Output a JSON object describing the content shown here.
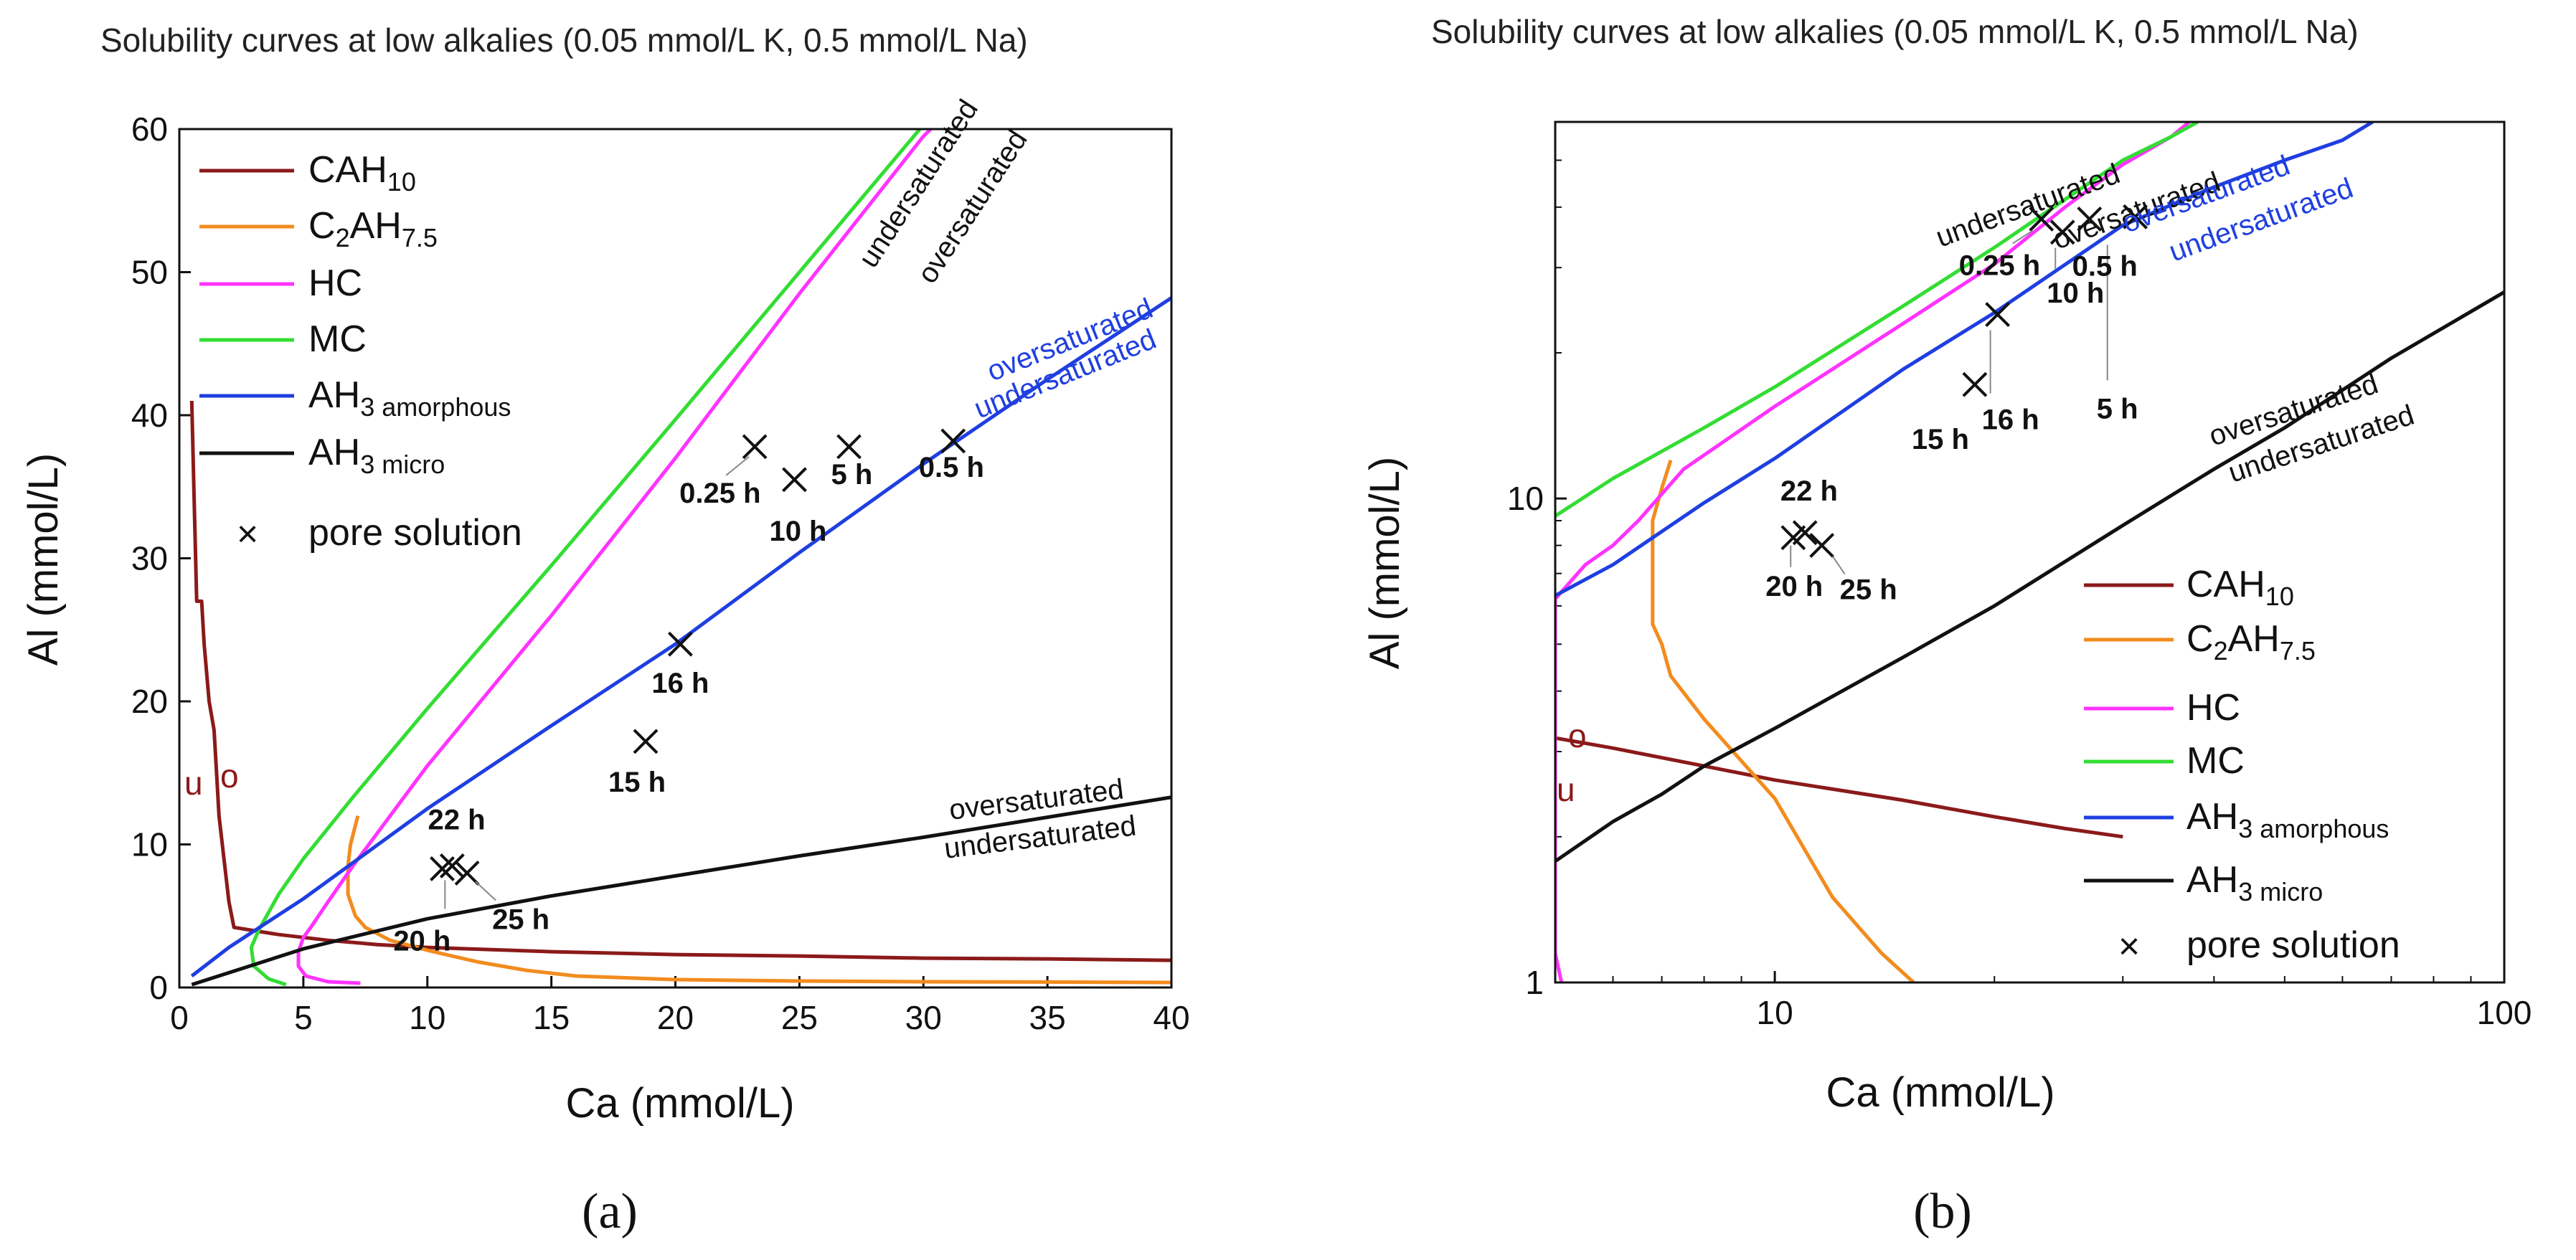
{
  "captions": [
    "(a)",
    "(b)"
  ],
  "chart_data": [
    {
      "type": "line",
      "panel": "a",
      "title": "Solubility curves at low alkalies (0.05 mmol/L K, 0.5 mmol/L Na)",
      "xlabel": "Ca (mmol/L)",
      "ylabel": "Al (mmol/L)",
      "xlim": [
        0,
        40
      ],
      "ylim": [
        0,
        60
      ],
      "xscale": "linear",
      "yscale": "linear",
      "xticks": [
        0,
        5,
        10,
        15,
        20,
        25,
        30,
        35,
        40
      ],
      "yticks": [
        0,
        10,
        20,
        30,
        40,
        50,
        60
      ],
      "series": [
        {
          "name": "CAH10",
          "color": "#8b1a1a",
          "points": [
            [
              0.5,
              41
            ],
            [
              0.6,
              34
            ],
            [
              0.7,
              27
            ],
            [
              0.9,
              27
            ],
            [
              1.0,
              24
            ],
            [
              1.2,
              20
            ],
            [
              1.4,
              18
            ],
            [
              1.5,
              15
            ],
            [
              1.6,
              12
            ],
            [
              1.8,
              9
            ],
            [
              2.0,
              6
            ],
            [
              2.2,
              4.2
            ],
            [
              4,
              3.7
            ],
            [
              6,
              3.3
            ],
            [
              8,
              3.0
            ],
            [
              10,
              2.8
            ],
            [
              15,
              2.5
            ],
            [
              20,
              2.3
            ],
            [
              25,
              2.2
            ],
            [
              30,
              2.05
            ],
            [
              35,
              2.0
            ],
            [
              40,
              1.9
            ]
          ]
        },
        {
          "name": "C2AH7.5",
          "color": "#f28c1e",
          "points": [
            [
              7.2,
              12
            ],
            [
              6.9,
              10
            ],
            [
              6.8,
              8.5
            ],
            [
              6.8,
              6.5
            ],
            [
              7.1,
              5
            ],
            [
              7.5,
              4.2
            ],
            [
              8.5,
              3.3
            ],
            [
              10,
              2.6
            ],
            [
              12,
              1.8
            ],
            [
              14,
              1.2
            ],
            [
              16,
              0.8
            ],
            [
              20,
              0.55
            ],
            [
              25,
              0.45
            ],
            [
              30,
              0.4
            ],
            [
              35,
              0.38
            ],
            [
              40,
              0.35
            ]
          ]
        },
        {
          "name": "HC",
          "color": "#ff33ff",
          "points": [
            [
              7.3,
              0.3
            ],
            [
              6,
              0.4
            ],
            [
              5.1,
              0.8
            ],
            [
              4.8,
              1.5
            ],
            [
              4.8,
              2.5
            ],
            [
              5.0,
              3.5
            ],
            [
              5.3,
              4.2
            ],
            [
              6,
              6
            ],
            [
              7,
              8.5
            ],
            [
              10,
              15.5
            ],
            [
              15,
              26
            ],
            [
              20,
              37
            ],
            [
              25,
              48.5
            ],
            [
              30,
              59.5
            ],
            [
              30.3,
              60
            ]
          ]
        },
        {
          "name": "MC",
          "color": "#33dd33",
          "points": [
            [
              4.3,
              0.2
            ],
            [
              3.6,
              0.6
            ],
            [
              3.0,
              1.5
            ],
            [
              2.9,
              2.8
            ],
            [
              3.2,
              4
            ],
            [
              4,
              6.5
            ],
            [
              5,
              9
            ],
            [
              7,
              13.3
            ],
            [
              10,
              19.5
            ],
            [
              15,
              29.5
            ],
            [
              20,
              39.7
            ],
            [
              25,
              50
            ],
            [
              30,
              60.3
            ],
            [
              30.1,
              60.5
            ]
          ]
        },
        {
          "name": "AH3 amorphous",
          "color": "#1f3fe0",
          "points": [
            [
              0.5,
              0.8
            ],
            [
              2,
              2.8
            ],
            [
              5,
              6.2
            ],
            [
              10,
              12.5
            ],
            [
              15,
              18.3
            ],
            [
              20,
              24
            ],
            [
              25,
              30.4
            ],
            [
              30,
              36.6
            ],
            [
              35,
              42.5
            ],
            [
              40,
              48.2
            ]
          ]
        },
        {
          "name": "AH3 micro",
          "color": "#111111",
          "points": [
            [
              0.5,
              0.2
            ],
            [
              5,
              2.7
            ],
            [
              10,
              4.8
            ],
            [
              15,
              6.4
            ],
            [
              20,
              7.8
            ],
            [
              25,
              9.2
            ],
            [
              30,
              10.5
            ],
            [
              35,
              11.9
            ],
            [
              40,
              13.3
            ]
          ]
        }
      ],
      "pore_solution": [
        {
          "label": "0.25 h",
          "ca": 23.2,
          "al": 37.8
        },
        {
          "label": "10 h",
          "ca": 24.8,
          "al": 35.5
        },
        {
          "label": "5 h",
          "ca": 27.0,
          "al": 37.8
        },
        {
          "label": "0.5 h",
          "ca": 31.2,
          "al": 38.2
        },
        {
          "label": "16 h",
          "ca": 20.2,
          "al": 24.0
        },
        {
          "label": "15 h",
          "ca": 18.8,
          "al": 17.2
        },
        {
          "label": "22 h",
          "ca": 10.6,
          "al": 8.3
        },
        {
          "label": "20 h",
          "ca": 11.0,
          "al": 8.5
        },
        {
          "label": "25 h",
          "ca": 11.6,
          "al": 8.0
        }
      ],
      "legend": {
        "entries": [
          {
            "main": "CAH",
            "sub": "10"
          },
          {
            "main": "C",
            "sub": "2",
            "main2": "AH",
            "sub2": "7.5"
          },
          {
            "main": "HC"
          },
          {
            "main": "MC"
          },
          {
            "main": "AH",
            "sub": "3 amorphous"
          },
          {
            "main": "AH",
            "sub": "3 micro"
          },
          {
            "main": "pore solution",
            "marker": "×"
          }
        ],
        "placement": "top-left"
      },
      "annotations": {
        "undersaturated": "undersaturated",
        "oversaturated": "oversaturated",
        "u": "u",
        "o": "o"
      }
    },
    {
      "type": "line",
      "panel": "b",
      "title": "Solubility curves at low alkalies (0.05 mmol/L K, 0.5 mmol/L Na)",
      "xlabel": "Ca (mmol/L)",
      "ylabel": "Al (mmol/L)",
      "xlim": [
        5,
        100
      ],
      "ylim": [
        1,
        60
      ],
      "xscale": "log",
      "yscale": "log",
      "xticks": [
        10,
        100
      ],
      "yticks": [
        1,
        10
      ],
      "series": [
        {
          "name": "CAH10",
          "color": "#8b1a1a",
          "points": [
            [
              5,
              3.2
            ],
            [
              6,
              3.05
            ],
            [
              8,
              2.8
            ],
            [
              10,
              2.62
            ],
            [
              15,
              2.38
            ],
            [
              20,
              2.2
            ],
            [
              25,
              2.08
            ],
            [
              30,
              2.0
            ]
          ]
        },
        {
          "name": "C2AH7.5",
          "color": "#f28c1e",
          "points": [
            [
              7.2,
              12
            ],
            [
              7.0,
              10.5
            ],
            [
              6.8,
              9
            ],
            [
              6.8,
              7
            ],
            [
              6.8,
              5.5
            ],
            [
              7.0,
              5
            ],
            [
              7.2,
              4.3
            ],
            [
              8,
              3.5
            ],
            [
              10,
              2.4
            ],
            [
              12,
              1.5
            ],
            [
              14,
              1.15
            ],
            [
              15.5,
              1.0
            ]
          ]
        },
        {
          "name": "HC",
          "color": "#ff33ff",
          "points": [
            [
              5.1,
              1.0
            ],
            [
              5.0,
              1.15
            ],
            [
              5.0,
              1.3
            ],
            [
              5.0,
              5.5
            ],
            [
              5.0,
              6.2
            ],
            [
              5.5,
              7.3
            ],
            [
              6,
              8
            ],
            [
              6.5,
              9
            ],
            [
              7.5,
              11.5
            ],
            [
              10,
              15.5
            ],
            [
              15,
              23
            ],
            [
              20,
              30.5
            ],
            [
              25,
              40
            ],
            [
              30,
              49
            ],
            [
              35,
              56
            ],
            [
              37,
              60
            ]
          ]
        },
        {
          "name": "MC",
          "color": "#33dd33",
          "points": [
            [
              5,
              9.2
            ],
            [
              6,
              11
            ],
            [
              8,
              14
            ],
            [
              10,
              17
            ],
            [
              15,
              25
            ],
            [
              20,
              33
            ],
            [
              25,
              41.5
            ],
            [
              30,
              50
            ],
            [
              35,
              56
            ],
            [
              38,
              60
            ]
          ]
        },
        {
          "name": "AH3 amorphous",
          "color": "#1f3fe0",
          "points": [
            [
              5,
              6.3
            ],
            [
              6,
              7.3
            ],
            [
              8,
              9.8
            ],
            [
              10,
              12.1
            ],
            [
              15,
              18.5
            ],
            [
              20,
              24.2
            ],
            [
              30,
              36.7
            ],
            [
              40,
              44
            ],
            [
              50,
              50
            ],
            [
              60,
              55
            ],
            [
              66,
              60
            ]
          ]
        },
        {
          "name": "AH3 micro",
          "color": "#111111",
          "points": [
            [
              5,
              1.78
            ],
            [
              6,
              2.15
            ],
            [
              7,
              2.45
            ],
            [
              8,
              2.8
            ],
            [
              10,
              3.35
            ],
            [
              15,
              4.7
            ],
            [
              20,
              6
            ],
            [
              30,
              8.8
            ],
            [
              40,
              11.5
            ],
            [
              50,
              14
            ],
            [
              70,
              19.5
            ],
            [
              100,
              26.7
            ]
          ]
        }
      ],
      "pore_solution": [
        {
          "label": "0.25 h",
          "ca": 23.2,
          "al": 37.8
        },
        {
          "label": "10 h",
          "ca": 24.8,
          "al": 35.5
        },
        {
          "label": "5 h",
          "ca": 27.0,
          "al": 37.8
        },
        {
          "label": "0.5 h",
          "ca": 31.2,
          "al": 38.2
        },
        {
          "label": "16 h",
          "ca": 20.2,
          "al": 24.0
        },
        {
          "label": "15 h",
          "ca": 18.8,
          "al": 17.2
        },
        {
          "label": "22 h",
          "ca": 10.6,
          "al": 8.3
        },
        {
          "label": "20 h",
          "ca": 11.0,
          "al": 8.5
        },
        {
          "label": "25 h",
          "ca": 11.6,
          "al": 8.0
        }
      ],
      "legend": {
        "entries": [
          {
            "main": "CAH",
            "sub": "10"
          },
          {
            "main": "C",
            "sub": "2",
            "main2": "AH",
            "sub2": "7.5"
          },
          {
            "main": "HC"
          },
          {
            "main": "MC"
          },
          {
            "main": "AH",
            "sub": "3 amorphous"
          },
          {
            "main": "AH",
            "sub": "3 micro"
          },
          {
            "main": "pore solution",
            "marker": "×"
          }
        ],
        "placement": "bottom-right"
      },
      "annotations": {
        "undersaturated": "undersaturated",
        "oversaturated": "oversaturated",
        "u": "u",
        "o": "o"
      }
    }
  ]
}
